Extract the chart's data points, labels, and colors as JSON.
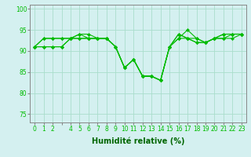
{
  "x_positions": [
    0,
    1,
    2,
    3,
    4,
    5,
    6,
    7,
    8,
    9,
    10,
    11,
    12,
    13,
    14,
    15,
    16,
    17,
    18,
    19,
    20,
    21,
    22,
    23
  ],
  "xtick_labels": [
    "0",
    "1",
    "2",
    "",
    "4",
    "5",
    "6",
    "7",
    "8",
    "9",
    "10",
    "11",
    "12",
    "13",
    "14",
    "15",
    "16",
    "17",
    "18",
    "19",
    "20",
    "21",
    "22",
    "23"
  ],
  "series": [
    [
      91,
      93,
      93,
      93,
      93,
      94,
      93,
      93,
      93,
      91,
      86,
      88,
      84,
      84,
      83,
      91,
      94,
      93,
      92,
      92,
      93,
      94,
      94,
      94
    ],
    [
      91,
      93,
      93,
      93,
      93,
      94,
      94,
      93,
      93,
      91,
      86,
      88,
      84,
      84,
      83,
      91,
      94,
      93,
      92,
      92,
      93,
      94,
      94,
      94
    ],
    [
      91,
      91,
      91,
      91,
      93,
      93,
      93,
      93,
      93,
      91,
      86,
      88,
      84,
      84,
      83,
      91,
      93,
      93,
      93,
      92,
      93,
      93,
      94,
      94
    ],
    [
      91,
      91,
      91,
      91,
      93,
      93,
      93,
      93,
      93,
      91,
      86,
      88,
      84,
      84,
      83,
      91,
      93,
      95,
      93,
      92,
      93,
      93,
      93,
      94
    ]
  ],
  "line_color": "#00bb00",
  "marker": "D",
  "markersize": 2.0,
  "linewidth": 0.8,
  "xlabel": "Humidité relative (%)",
  "xlabel_fontsize": 7,
  "xlabel_color": "#006600",
  "xlabel_fontweight": "bold",
  "ylabel_ticks": [
    75,
    80,
    85,
    90,
    95,
    100
  ],
  "ylim": [
    73,
    101
  ],
  "xlim": [
    -0.5,
    23.5
  ],
  "tick_fontsize": 5.5,
  "background_color": "#d4f0f0",
  "grid_color": "#aaddcc",
  "grid_linewidth": 0.6,
  "axis_color": "#888888"
}
